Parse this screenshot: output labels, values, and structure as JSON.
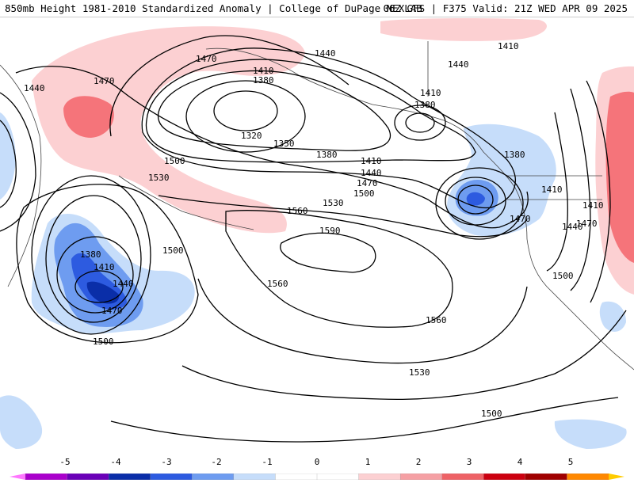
{
  "header": {
    "title_left": "850mb Height 1981-2010 Standardized Anomaly | College of DuPage NEXLAB",
    "title_right": "06Z GFS | F375 Valid: 21Z WED APR 09 2025"
  },
  "map": {
    "contour_labels": [
      {
        "id": "a",
        "text": "1470"
      },
      {
        "id": "b",
        "text": "1440"
      },
      {
        "id": "c",
        "text": "1470"
      },
      {
        "id": "d",
        "text": "1410"
      },
      {
        "id": "e",
        "text": "1380"
      },
      {
        "id": "f",
        "text": "1320"
      },
      {
        "id": "g",
        "text": "1350"
      },
      {
        "id": "h",
        "text": "1380"
      },
      {
        "id": "i",
        "text": "1440"
      },
      {
        "id": "j",
        "text": "1440"
      },
      {
        "id": "k",
        "text": "1410"
      },
      {
        "id": "l",
        "text": "1410"
      },
      {
        "id": "m",
        "text": "1380"
      },
      {
        "id": "n",
        "text": "1500"
      },
      {
        "id": "o",
        "text": "1530"
      },
      {
        "id": "p",
        "text": "1410"
      },
      {
        "id": "q",
        "text": "1440"
      },
      {
        "id": "r",
        "text": "1470"
      },
      {
        "id": "s",
        "text": "1500"
      },
      {
        "id": "t",
        "text": "1530"
      },
      {
        "id": "u",
        "text": "1560"
      },
      {
        "id": "v",
        "text": "1590"
      },
      {
        "id": "w",
        "text": "1380"
      },
      {
        "id": "x",
        "text": "1410"
      },
      {
        "id": "y",
        "text": "1410"
      },
      {
        "id": "z",
        "text": "1470"
      },
      {
        "id": "aa",
        "text": "1470"
      },
      {
        "id": "ab",
        "text": "1440"
      },
      {
        "id": "ac",
        "text": "1500"
      },
      {
        "id": "ad",
        "text": "1380"
      },
      {
        "id": "ae",
        "text": "1410"
      },
      {
        "id": "af",
        "text": "1440"
      },
      {
        "id": "ag",
        "text": "1470"
      },
      {
        "id": "ah",
        "text": "1500"
      },
      {
        "id": "ai",
        "text": "1500"
      },
      {
        "id": "aj",
        "text": "1560"
      },
      {
        "id": "ak",
        "text": "1560"
      },
      {
        "id": "al",
        "text": "1530"
      },
      {
        "id": "am",
        "text": "1500"
      }
    ]
  },
  "colorbar": {
    "ticks": [
      "-5",
      "-4",
      "-3",
      "-2",
      "-1",
      "0",
      "1",
      "2",
      "3",
      "4",
      "5"
    ],
    "colors": [
      "#ff77ff",
      "#aa00cc",
      "#6a00b8",
      "#0a2ea8",
      "#2d5be0",
      "#6e9cf0",
      "#c6ddfa",
      "#ffffff",
      "#ffffff",
      "#fcd0d2",
      "#f5a0a4",
      "#ee6266",
      "#cc0010",
      "#a00000",
      "#ff8800",
      "#ffcc00"
    ]
  }
}
